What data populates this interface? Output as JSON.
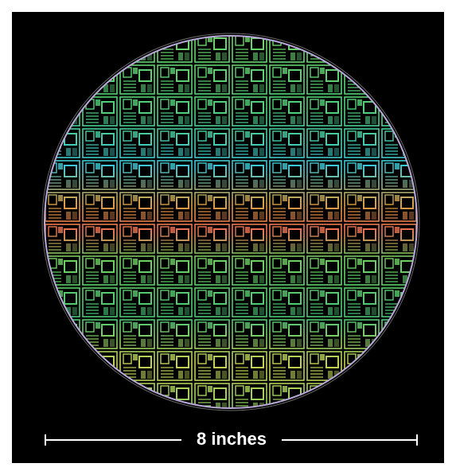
{
  "scale_bar": {
    "label": "8 inches"
  }
}
